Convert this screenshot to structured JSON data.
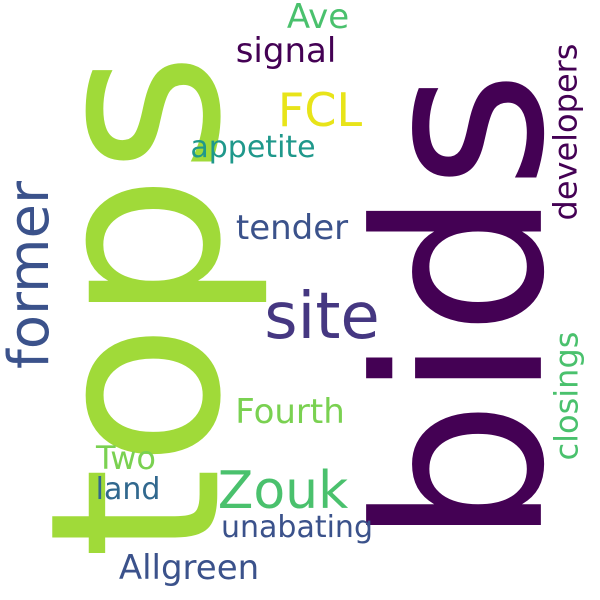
{
  "words": [
    {
      "id": "bids",
      "text": "bids",
      "color": "#440154",
      "vertical": true
    },
    {
      "id": "tops",
      "text": "tops",
      "color": "#a0da39",
      "vertical": true
    },
    {
      "id": "site",
      "text": "site",
      "color": "#453781",
      "vertical": false
    },
    {
      "id": "former",
      "text": "former",
      "color": "#3b528b",
      "vertical": true
    },
    {
      "id": "zouk",
      "text": "Zouk",
      "color": "#4ac16d",
      "vertical": false
    },
    {
      "id": "fcl",
      "text": "FCL",
      "color": "#e8e419",
      "vertical": false
    },
    {
      "id": "developers",
      "text": "developers",
      "color": "#440154",
      "vertical": true
    },
    {
      "id": "closings",
      "text": "closings",
      "color": "#4ac16d",
      "vertical": true
    },
    {
      "id": "tender",
      "text": "tender",
      "color": "#3b528b",
      "vertical": false
    },
    {
      "id": "signal",
      "text": "signal",
      "color": "#440154",
      "vertical": false
    },
    {
      "id": "fourth",
      "text": "Fourth",
      "color": "#7ad151",
      "vertical": false
    },
    {
      "id": "allgreen",
      "text": "Allgreen",
      "color": "#3b528b",
      "vertical": false
    },
    {
      "id": "unabating",
      "text": "unabating",
      "color": "#3b528b",
      "vertical": false
    },
    {
      "id": "appetite",
      "text": "appetite",
      "color": "#1f988b",
      "vertical": false
    },
    {
      "id": "ave",
      "text": "Ave",
      "color": "#4ac16d",
      "vertical": false
    },
    {
      "id": "two",
      "text": "Two",
      "color": "#7ad151",
      "vertical": false
    },
    {
      "id": "land",
      "text": "land",
      "color": "#31688e",
      "vertical": false
    }
  ]
}
